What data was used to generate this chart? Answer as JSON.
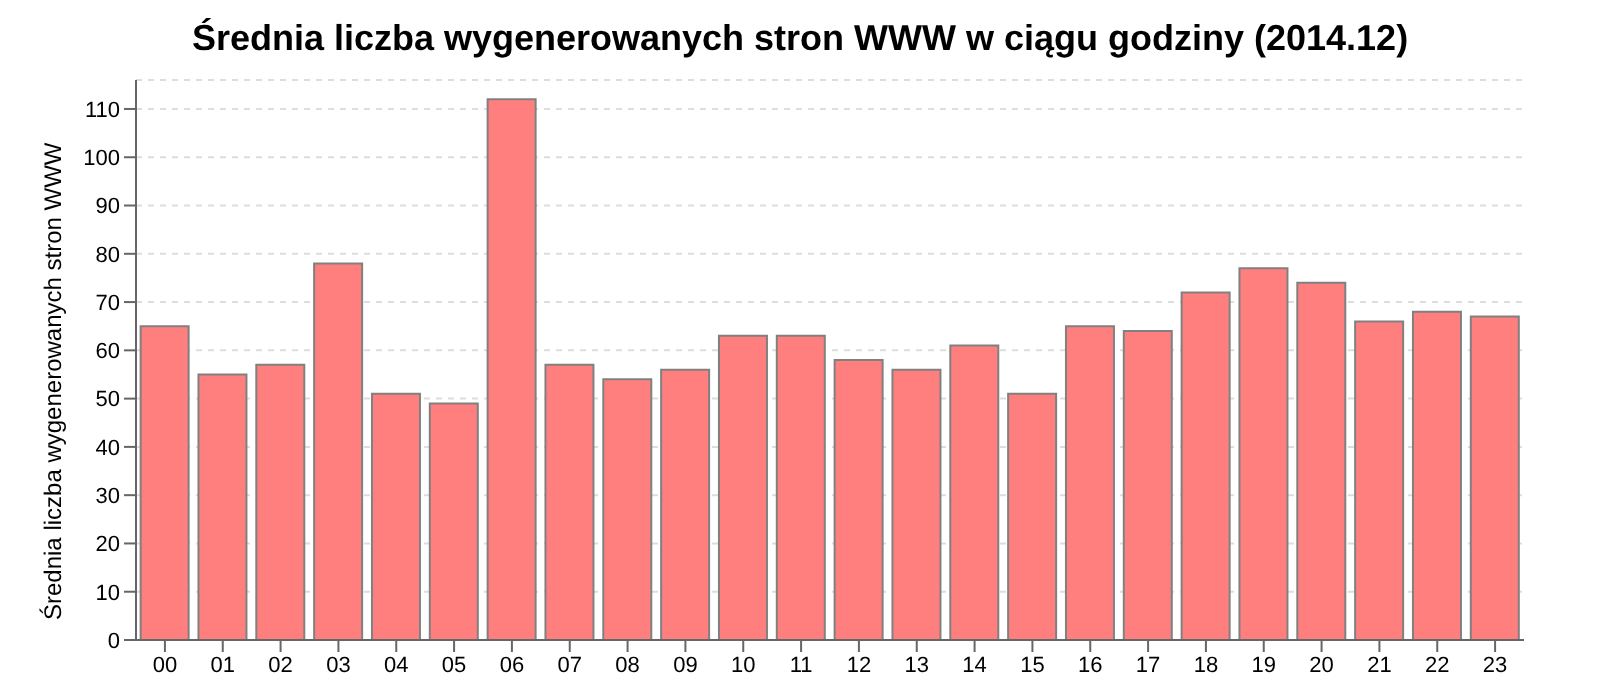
{
  "chart_data": {
    "type": "bar",
    "title": "Średnia liczba wygenerowanych stron WWW w ciągu godziny (2014.12)",
    "ylabel": "Średnia liczba wygenerowanych stron WWW",
    "categories": [
      "00",
      "01",
      "02",
      "03",
      "04",
      "05",
      "06",
      "07",
      "08",
      "09",
      "10",
      "11",
      "12",
      "13",
      "14",
      "15",
      "16",
      "17",
      "18",
      "19",
      "20",
      "21",
      "22",
      "23"
    ],
    "values": [
      65,
      55,
      57,
      78,
      51,
      49,
      112,
      57,
      54,
      56,
      63,
      63,
      58,
      56,
      61,
      51,
      65,
      64,
      72,
      77,
      74,
      66,
      68,
      67
    ],
    "color": "#ff7f7f",
    "ylim": [
      0,
      116
    ],
    "yticks": [
      0,
      10,
      20,
      30,
      40,
      50,
      60,
      70,
      80,
      90,
      100,
      110
    ],
    "grid": "y",
    "legend": false
  }
}
